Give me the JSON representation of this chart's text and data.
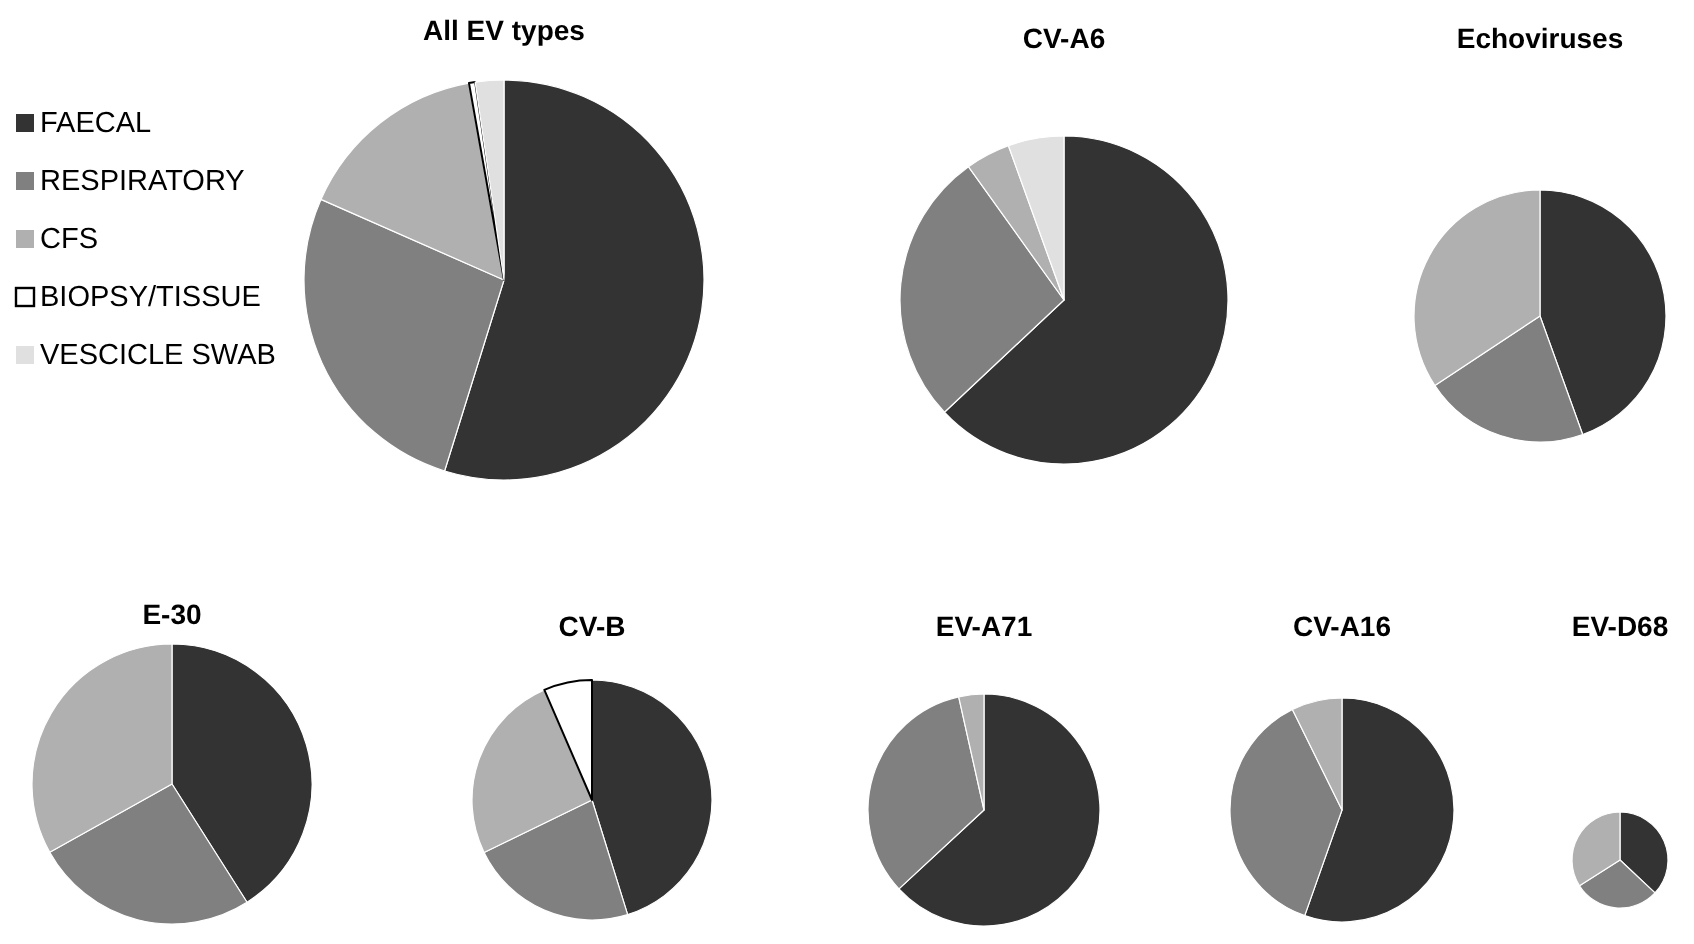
{
  "chart_data": [
    {
      "type": "pie",
      "title": "All EV types",
      "categories": [
        "FAECAL",
        "RESPIRATORY",
        "CFS",
        "BIOPSY/TISSUE",
        "VESCICLE SWAB"
      ],
      "values": [
        54.8,
        26.8,
        15.6,
        0.5,
        2.3
      ],
      "colors": [
        "#333333",
        "#808080",
        "#b0b0b0",
        "#ffffff",
        "#e0e0e0"
      ],
      "legend": "left"
    },
    {
      "type": "pie",
      "title": "CV-A6",
      "categories": [
        null,
        null,
        null,
        null
      ],
      "values": [
        63,
        27.1,
        4.4,
        5.5
      ],
      "colors": [
        "#333333",
        "#808080",
        "#b0b0b0",
        "#e0e0e0"
      ]
    },
    {
      "type": "pie",
      "title": "Echoviruses",
      "categories": [
        null,
        null,
        null
      ],
      "values": [
        44.5,
        21.2,
        34.3
      ],
      "colors": [
        "#333333",
        "#808080",
        "#b0b0b0"
      ]
    },
    {
      "type": "pie",
      "title": "E-30",
      "categories": [
        null,
        null,
        null
      ],
      "values": [
        41,
        25.9,
        33.1
      ],
      "colors": [
        "#333333",
        "#808080",
        "#b0b0b0"
      ]
    },
    {
      "type": "pie",
      "title": "CV-B",
      "categories": [
        null,
        null,
        null,
        null
      ],
      "values": [
        45.2,
        22.6,
        25.7,
        6.5
      ],
      "colors": [
        "#333333",
        "#808080",
        "#b0b0b0",
        "#ffffff"
      ]
    },
    {
      "type": "pie",
      "title": "EV-A71",
      "categories": [
        null,
        null,
        null
      ],
      "values": [
        63.1,
        33.4,
        3.5
      ],
      "colors": [
        "#333333",
        "#808080",
        "#b0b0b0"
      ]
    },
    {
      "type": "pie",
      "title": "CV-A16",
      "categories": [
        null,
        null,
        null
      ],
      "values": [
        55.4,
        37.3,
        7.3
      ],
      "colors": [
        "#333333",
        "#808080",
        "#b0b0b0"
      ]
    },
    {
      "type": "pie",
      "title": "EV-D68",
      "categories": [
        null,
        null,
        null
      ],
      "values": [
        37,
        29,
        34
      ],
      "colors": [
        "#333333",
        "#808080",
        "#b0b0b0"
      ]
    }
  ]
}
